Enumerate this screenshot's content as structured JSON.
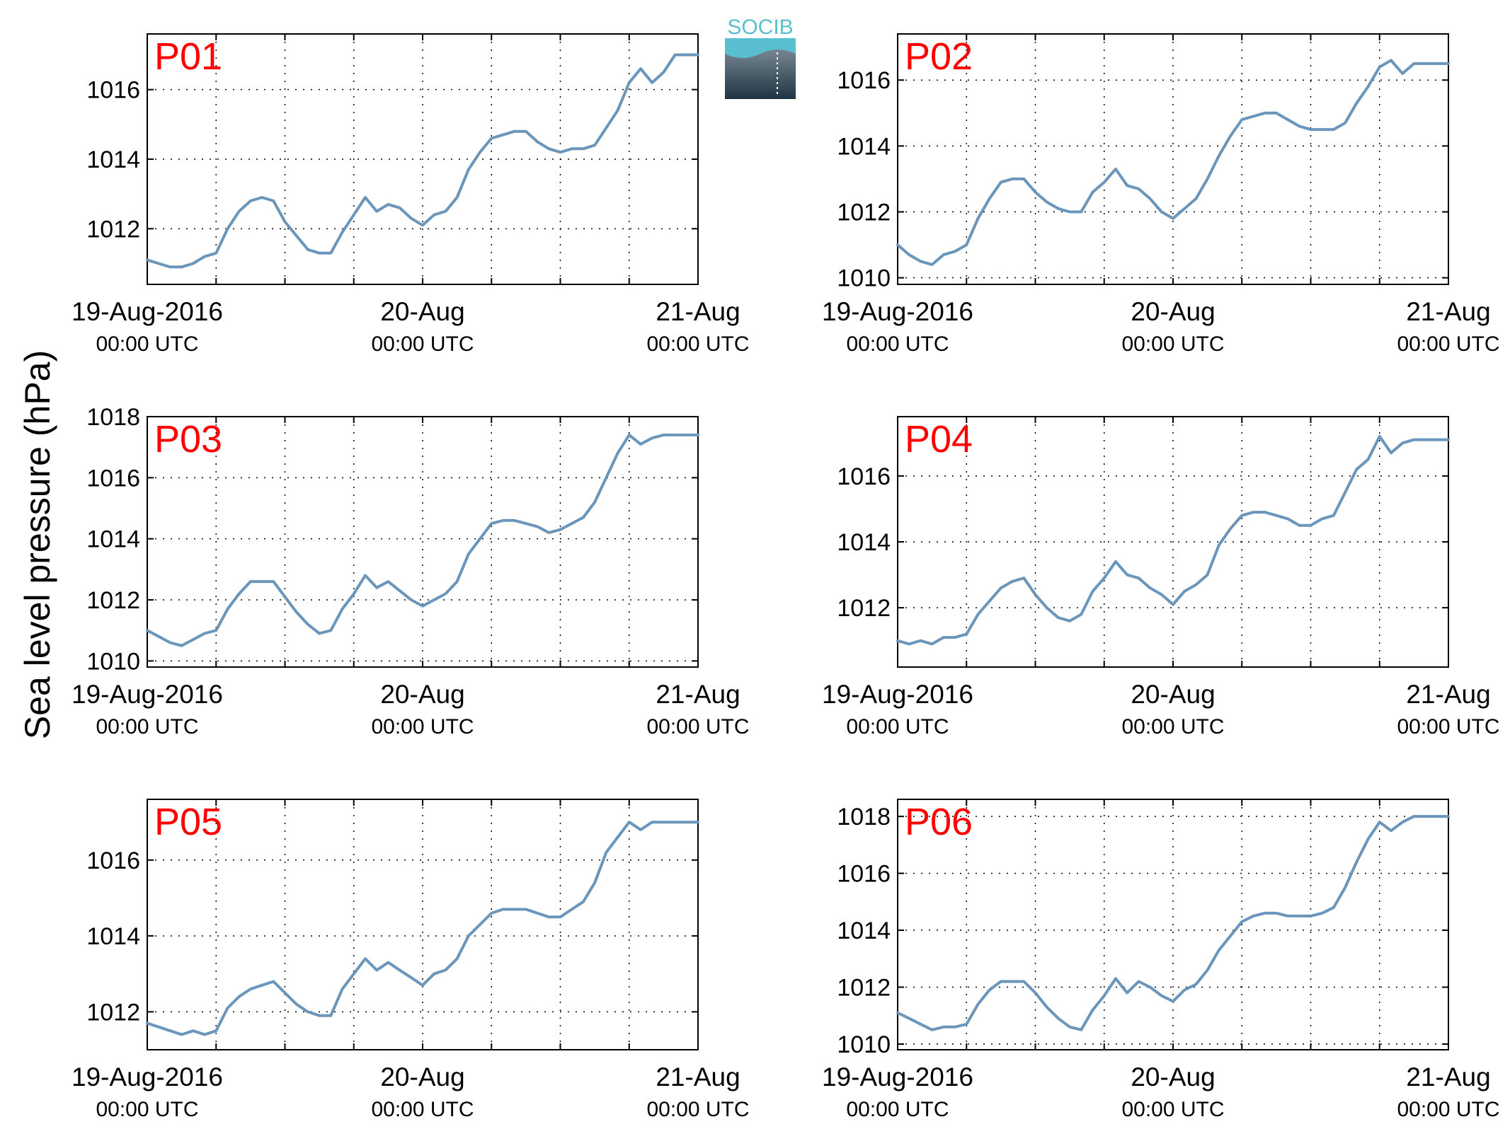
{
  "figure": {
    "ylabel": "Sea level pressure (hPa)",
    "logo_text": "SOCIB",
    "series_color": "#6a96bb",
    "label_color": "#ff0000"
  },
  "chart_data": [
    {
      "type": "line",
      "panel_label": "P01",
      "x_ticks": [
        {
          "x": 0,
          "date": "19-Aug-2016",
          "time": "00:00 UTC"
        },
        {
          "x": 24,
          "date": "20-Aug",
          "time": "00:00 UTC"
        },
        {
          "x": 48,
          "date": "21-Aug",
          "time": "00:00 UTC"
        }
      ],
      "xlim": [
        0,
        48
      ],
      "ylim": [
        1010.4,
        1017.6
      ],
      "y_ticks": [
        1012,
        1014,
        1016
      ],
      "grid": true,
      "x": [
        0,
        1,
        2,
        3,
        4,
        5,
        6,
        7,
        8,
        9,
        10,
        11,
        12,
        13,
        14,
        15,
        16,
        17,
        18,
        19,
        20,
        21,
        22,
        23,
        24,
        25,
        26,
        27,
        28,
        29,
        30,
        31,
        32,
        33,
        34,
        35,
        36,
        37,
        38,
        39,
        40,
        41,
        42,
        43,
        44,
        45,
        46,
        47,
        48
      ],
      "y": [
        1011.1,
        1011.0,
        1010.9,
        1010.9,
        1011.0,
        1011.2,
        1011.3,
        1012.0,
        1012.5,
        1012.8,
        1012.9,
        1012.8,
        1012.2,
        1011.8,
        1011.4,
        1011.3,
        1011.3,
        1011.9,
        1012.4,
        1012.9,
        1012.5,
        1012.7,
        1012.6,
        1012.3,
        1012.1,
        1012.4,
        1012.5,
        1012.9,
        1013.7,
        1014.2,
        1014.6,
        1014.7,
        1014.8,
        1014.8,
        1014.5,
        1014.3,
        1014.2,
        1014.3,
        1014.3,
        1014.4,
        1014.9,
        1015.4,
        1016.2,
        1016.6,
        1016.2,
        1016.5,
        1017.0,
        1017.0,
        1017.0
      ]
    },
    {
      "type": "line",
      "panel_label": "P02",
      "x_ticks": [
        {
          "x": 0,
          "date": "19-Aug-2016",
          "time": "00:00 UTC"
        },
        {
          "x": 24,
          "date": "20-Aug",
          "time": "00:00 UTC"
        },
        {
          "x": 48,
          "date": "21-Aug",
          "time": "00:00 UTC"
        }
      ],
      "xlim": [
        0,
        48
      ],
      "ylim": [
        1009.8,
        1017.4
      ],
      "y_ticks": [
        1010,
        1012,
        1014,
        1016
      ],
      "grid": true,
      "x": [
        0,
        1,
        2,
        3,
        4,
        5,
        6,
        7,
        8,
        9,
        10,
        11,
        12,
        13,
        14,
        15,
        16,
        17,
        18,
        19,
        20,
        21,
        22,
        23,
        24,
        25,
        26,
        27,
        28,
        29,
        30,
        31,
        32,
        33,
        34,
        35,
        36,
        37,
        38,
        39,
        40,
        41,
        42,
        43,
        44,
        45,
        46,
        47,
        48
      ],
      "y": [
        1011.0,
        1010.7,
        1010.5,
        1010.4,
        1010.7,
        1010.8,
        1011.0,
        1011.8,
        1012.4,
        1012.9,
        1013.0,
        1013.0,
        1012.6,
        1012.3,
        1012.1,
        1012.0,
        1012.0,
        1012.6,
        1012.9,
        1013.3,
        1012.8,
        1012.7,
        1012.4,
        1012.0,
        1011.8,
        1012.1,
        1012.4,
        1013.0,
        1013.7,
        1014.3,
        1014.8,
        1014.9,
        1015.0,
        1015.0,
        1014.8,
        1014.6,
        1014.5,
        1014.5,
        1014.5,
        1014.7,
        1015.3,
        1015.8,
        1016.4,
        1016.6,
        1016.2,
        1016.5,
        1016.5,
        1016.5,
        1016.5
      ]
    },
    {
      "type": "line",
      "panel_label": "P03",
      "x_ticks": [
        {
          "x": 0,
          "date": "19-Aug-2016",
          "time": "00:00 UTC"
        },
        {
          "x": 24,
          "date": "20-Aug",
          "time": "00:00 UTC"
        },
        {
          "x": 48,
          "date": "21-Aug",
          "time": "00:00 UTC"
        }
      ],
      "xlim": [
        0,
        48
      ],
      "ylim": [
        1009.8,
        1018.0
      ],
      "y_ticks": [
        1010,
        1012,
        1014,
        1016,
        1018
      ],
      "grid": true,
      "x": [
        0,
        1,
        2,
        3,
        4,
        5,
        6,
        7,
        8,
        9,
        10,
        11,
        12,
        13,
        14,
        15,
        16,
        17,
        18,
        19,
        20,
        21,
        22,
        23,
        24,
        25,
        26,
        27,
        28,
        29,
        30,
        31,
        32,
        33,
        34,
        35,
        36,
        37,
        38,
        39,
        40,
        41,
        42,
        43,
        44,
        45,
        46,
        47,
        48
      ],
      "y": [
        1011.0,
        1010.8,
        1010.6,
        1010.5,
        1010.7,
        1010.9,
        1011.0,
        1011.7,
        1012.2,
        1012.6,
        1012.6,
        1012.6,
        1012.1,
        1011.6,
        1011.2,
        1010.9,
        1011.0,
        1011.7,
        1012.2,
        1012.8,
        1012.4,
        1012.6,
        1012.3,
        1012.0,
        1011.8,
        1012.0,
        1012.2,
        1012.6,
        1013.5,
        1014.0,
        1014.5,
        1014.6,
        1014.6,
        1014.5,
        1014.4,
        1014.2,
        1014.3,
        1014.5,
        1014.7,
        1015.2,
        1016.0,
        1016.8,
        1017.4,
        1017.1,
        1017.3,
        1017.4,
        1017.4,
        1017.4,
        1017.4
      ]
    },
    {
      "type": "line",
      "panel_label": "P04",
      "x_ticks": [
        {
          "x": 0,
          "date": "19-Aug-2016",
          "time": "00:00 UTC"
        },
        {
          "x": 24,
          "date": "20-Aug",
          "time": "00:00 UTC"
        },
        {
          "x": 48,
          "date": "21-Aug",
          "time": "00:00 UTC"
        }
      ],
      "xlim": [
        0,
        48
      ],
      "ylim": [
        1010.2,
        1017.8
      ],
      "y_ticks": [
        1012,
        1014,
        1016
      ],
      "grid": true,
      "x": [
        0,
        1,
        2,
        3,
        4,
        5,
        6,
        7,
        8,
        9,
        10,
        11,
        12,
        13,
        14,
        15,
        16,
        17,
        18,
        19,
        20,
        21,
        22,
        23,
        24,
        25,
        26,
        27,
        28,
        29,
        30,
        31,
        32,
        33,
        34,
        35,
        36,
        37,
        38,
        39,
        40,
        41,
        42,
        43,
        44,
        45,
        46,
        47,
        48
      ],
      "y": [
        1011.0,
        1010.9,
        1011.0,
        1010.9,
        1011.1,
        1011.1,
        1011.2,
        1011.8,
        1012.2,
        1012.6,
        1012.8,
        1012.9,
        1012.4,
        1012.0,
        1011.7,
        1011.6,
        1011.8,
        1012.5,
        1012.9,
        1013.4,
        1013.0,
        1012.9,
        1012.6,
        1012.4,
        1012.1,
        1012.5,
        1012.7,
        1013.0,
        1013.9,
        1014.4,
        1014.8,
        1014.9,
        1014.9,
        1014.8,
        1014.7,
        1014.5,
        1014.5,
        1014.7,
        1014.8,
        1015.5,
        1016.2,
        1016.5,
        1017.2,
        1016.7,
        1017.0,
        1017.1,
        1017.1,
        1017.1,
        1017.1
      ]
    },
    {
      "type": "line",
      "panel_label": "P05",
      "x_ticks": [
        {
          "x": 0,
          "date": "19-Aug-2016",
          "time": "00:00 UTC"
        },
        {
          "x": 24,
          "date": "20-Aug",
          "time": "00:00 UTC"
        },
        {
          "x": 48,
          "date": "21-Aug",
          "time": "00:00 UTC"
        }
      ],
      "xlim": [
        0,
        48
      ],
      "ylim": [
        1011.0,
        1017.6
      ],
      "y_ticks": [
        1012,
        1014,
        1016
      ],
      "grid": true,
      "x": [
        0,
        1,
        2,
        3,
        4,
        5,
        6,
        7,
        8,
        9,
        10,
        11,
        12,
        13,
        14,
        15,
        16,
        17,
        18,
        19,
        20,
        21,
        22,
        23,
        24,
        25,
        26,
        27,
        28,
        29,
        30,
        31,
        32,
        33,
        34,
        35,
        36,
        37,
        38,
        39,
        40,
        41,
        42,
        43,
        44,
        45,
        46,
        47,
        48
      ],
      "y": [
        1011.7,
        1011.6,
        1011.5,
        1011.4,
        1011.5,
        1011.4,
        1011.5,
        1012.1,
        1012.4,
        1012.6,
        1012.7,
        1012.8,
        1012.5,
        1012.2,
        1012.0,
        1011.9,
        1011.9,
        1012.6,
        1013.0,
        1013.4,
        1013.1,
        1013.3,
        1013.1,
        1012.9,
        1012.7,
        1013.0,
        1013.1,
        1013.4,
        1014.0,
        1014.3,
        1014.6,
        1014.7,
        1014.7,
        1014.7,
        1014.6,
        1014.5,
        1014.5,
        1014.7,
        1014.9,
        1015.4,
        1016.2,
        1016.6,
        1017.0,
        1016.8,
        1017.0,
        1017.0,
        1017.0,
        1017.0,
        1017.0
      ]
    },
    {
      "type": "line",
      "panel_label": "P06",
      "x_ticks": [
        {
          "x": 0,
          "date": "19-Aug-2016",
          "time": "00:00 UTC"
        },
        {
          "x": 24,
          "date": "20-Aug",
          "time": "00:00 UTC"
        },
        {
          "x": 48,
          "date": "21-Aug",
          "time": "00:00 UTC"
        }
      ],
      "xlim": [
        0,
        48
      ],
      "ylim": [
        1009.8,
        1018.6
      ],
      "y_ticks": [
        1010,
        1012,
        1014,
        1016,
        1018
      ],
      "grid": true,
      "x": [
        0,
        1,
        2,
        3,
        4,
        5,
        6,
        7,
        8,
        9,
        10,
        11,
        12,
        13,
        14,
        15,
        16,
        17,
        18,
        19,
        20,
        21,
        22,
        23,
        24,
        25,
        26,
        27,
        28,
        29,
        30,
        31,
        32,
        33,
        34,
        35,
        36,
        37,
        38,
        39,
        40,
        41,
        42,
        43,
        44,
        45,
        46,
        47,
        48
      ],
      "y": [
        1011.1,
        1010.9,
        1010.7,
        1010.5,
        1010.6,
        1010.6,
        1010.7,
        1011.4,
        1011.9,
        1012.2,
        1012.2,
        1012.2,
        1011.8,
        1011.3,
        1010.9,
        1010.6,
        1010.5,
        1011.2,
        1011.7,
        1012.3,
        1011.8,
        1012.2,
        1012.0,
        1011.7,
        1011.5,
        1011.9,
        1012.1,
        1012.6,
        1013.3,
        1013.8,
        1014.3,
        1014.5,
        1014.6,
        1014.6,
        1014.5,
        1014.5,
        1014.5,
        1014.6,
        1014.8,
        1015.5,
        1016.4,
        1017.2,
        1017.8,
        1017.5,
        1017.8,
        1018.0,
        1018.0,
        1018.0,
        1018.0
      ]
    }
  ]
}
